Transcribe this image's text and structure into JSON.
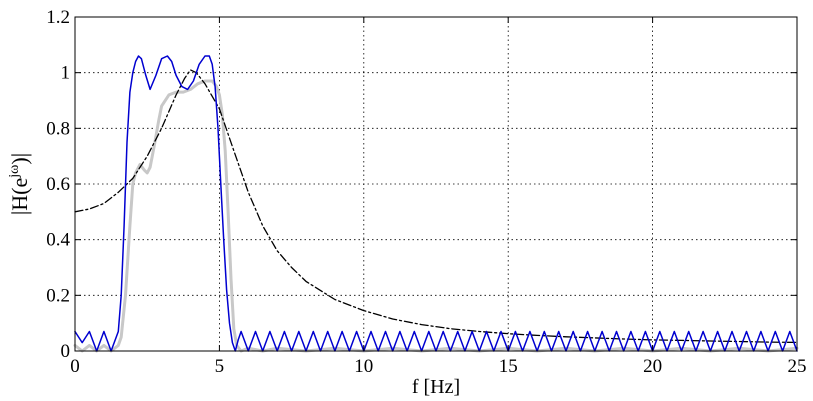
{
  "chart_data": {
    "type": "line",
    "title": "",
    "xlabel": "f [Hz]",
    "ylabel": "|H(e^jω)|",
    "ylabel_parts": {
      "pre": "|H(e",
      "sup": "jω",
      "post": ")|"
    },
    "xlim": [
      0,
      25
    ],
    "ylim": [
      0,
      1.2
    ],
    "xticks": [
      0,
      5,
      10,
      15,
      20,
      25
    ],
    "xtick_labels": [
      "0",
      "5",
      "10",
      "15",
      "20",
      "25"
    ],
    "yticks": [
      0,
      0.2,
      0.4,
      0.6,
      0.8,
      1.0,
      1.2
    ],
    "ytick_labels": [
      "0",
      "0.2",
      "0.4",
      "0.6",
      "0.8",
      "1",
      "1.2"
    ],
    "grid": true,
    "legend": "none",
    "series": [
      {
        "style": "solid-thick",
        "color": "#c8c8c8",
        "x": [
          0,
          0.25,
          0.5,
          0.75,
          1.0,
          1.25,
          1.5,
          1.6,
          1.75,
          1.9,
          2.0,
          2.1,
          2.25,
          2.4,
          2.5,
          2.6,
          2.75,
          2.9,
          3.0,
          3.25,
          3.5,
          3.75,
          4.0,
          4.25,
          4.5,
          4.75,
          4.9,
          5.0,
          5.1,
          5.2,
          5.3,
          5.4,
          5.5,
          5.6,
          5.75,
          6.0,
          6.5,
          7.0,
          8,
          9,
          10,
          11,
          12,
          13,
          14,
          15,
          16,
          17,
          18,
          19,
          20,
          21,
          22,
          23,
          24,
          25
        ],
        "y": [
          0.02,
          0.0,
          0.02,
          0.0,
          0.02,
          0.0,
          0.02,
          0.05,
          0.2,
          0.45,
          0.6,
          0.64,
          0.67,
          0.65,
          0.64,
          0.66,
          0.74,
          0.83,
          0.88,
          0.92,
          0.93,
          0.93,
          0.94,
          0.96,
          0.97,
          0.97,
          0.95,
          0.92,
          0.85,
          0.72,
          0.5,
          0.26,
          0.08,
          0.02,
          0.0,
          0.01,
          0.0,
          0.01,
          0.0,
          0.01,
          0.0,
          0.01,
          0.0,
          0.01,
          0.0,
          0.01,
          0.0,
          0.01,
          0.0,
          0.01,
          0.0,
          0.01,
          0.0,
          0.01,
          0.0,
          0.01
        ]
      },
      {
        "style": "dashdot",
        "color": "#000000",
        "x": [
          0,
          0.5,
          1.0,
          1.5,
          2.0,
          2.5,
          3.0,
          3.5,
          3.8,
          4.0,
          4.2,
          4.5,
          5.0,
          5.5,
          6.0,
          6.5,
          7.0,
          7.5,
          8.0,
          9.0,
          10.0,
          11.0,
          12.0,
          13.0,
          14.0,
          15.0,
          16.0,
          17.0,
          18.0,
          19.0,
          20.0,
          21.0,
          22.0,
          23.0,
          24.0,
          25.0
        ],
        "y": [
          0.5,
          0.51,
          0.53,
          0.57,
          0.62,
          0.7,
          0.8,
          0.92,
          0.98,
          1.01,
          1.0,
          0.96,
          0.87,
          0.72,
          0.57,
          0.45,
          0.36,
          0.3,
          0.25,
          0.185,
          0.145,
          0.115,
          0.095,
          0.08,
          0.07,
          0.062,
          0.056,
          0.051,
          0.047,
          0.043,
          0.04,
          0.038,
          0.036,
          0.034,
          0.032,
          0.031
        ]
      },
      {
        "style": "solid",
        "color": "#0000d0",
        "x": [
          0,
          0.25,
          0.5,
          0.75,
          1.0,
          1.25,
          1.5,
          1.6,
          1.7,
          1.8,
          1.9,
          2.0,
          2.1,
          2.2,
          2.3,
          2.45,
          2.6,
          2.8,
          3.0,
          3.2,
          3.35,
          3.5,
          3.7,
          3.9,
          4.1,
          4.3,
          4.5,
          4.65,
          4.75,
          4.85,
          4.95,
          5.05,
          5.15,
          5.25,
          5.35,
          5.45,
          5.55,
          5.65,
          5.75,
          6.0,
          6.25,
          6.5,
          6.75,
          7.0,
          7.25,
          7.5,
          7.75,
          8.0,
          8.25,
          8.5,
          8.75,
          9.0,
          9.25,
          9.5,
          9.75,
          10.0,
          10.25,
          10.5,
          10.75,
          11.0,
          11.25,
          11.5,
          11.75,
          12.0,
          12.25,
          12.5,
          12.75,
          13.0,
          13.25,
          13.5,
          13.75,
          14.0,
          14.25,
          14.5,
          14.75,
          15.0,
          15.25,
          15.5,
          15.75,
          16.0,
          16.25,
          16.5,
          16.75,
          17.0,
          17.25,
          17.5,
          17.75,
          18.0,
          18.25,
          18.5,
          18.75,
          19.0,
          19.25,
          19.5,
          19.75,
          20.0,
          20.25,
          20.5,
          20.75,
          21.0,
          21.25,
          21.5,
          21.75,
          22.0,
          22.25,
          22.5,
          22.75,
          23.0,
          23.25,
          23.5,
          23.75,
          24.0,
          24.25,
          24.5,
          24.75,
          25.0
        ],
        "y": [
          0.07,
          0.03,
          0.07,
          0.0,
          0.07,
          0.0,
          0.07,
          0.2,
          0.45,
          0.75,
          0.93,
          1.0,
          1.04,
          1.06,
          1.05,
          0.99,
          0.94,
          0.99,
          1.05,
          1.06,
          1.04,
          0.99,
          0.95,
          0.94,
          0.97,
          1.03,
          1.06,
          1.06,
          1.03,
          0.95,
          0.8,
          0.6,
          0.4,
          0.22,
          0.1,
          0.03,
          0.0,
          0.04,
          0.07,
          0.0,
          0.07,
          0.0,
          0.07,
          0.0,
          0.07,
          0.0,
          0.07,
          0.0,
          0.07,
          0.0,
          0.07,
          0.0,
          0.07,
          0.0,
          0.07,
          0.0,
          0.07,
          0.0,
          0.07,
          0.0,
          0.07,
          0.0,
          0.07,
          0.0,
          0.07,
          0.0,
          0.07,
          0.0,
          0.07,
          0.0,
          0.07,
          0.0,
          0.07,
          0.0,
          0.07,
          0.0,
          0.07,
          0.0,
          0.07,
          0.0,
          0.07,
          0.0,
          0.07,
          0.0,
          0.07,
          0.0,
          0.07,
          0.0,
          0.07,
          0.0,
          0.07,
          0.0,
          0.07,
          0.0,
          0.07,
          0.0,
          0.07,
          0.0,
          0.07,
          0.0,
          0.07,
          0.0,
          0.07,
          0.0,
          0.07,
          0.0,
          0.07,
          0.0,
          0.07,
          0.0,
          0.07,
          0.0,
          0.07,
          0.0,
          0.07,
          0.0
        ]
      }
    ]
  }
}
